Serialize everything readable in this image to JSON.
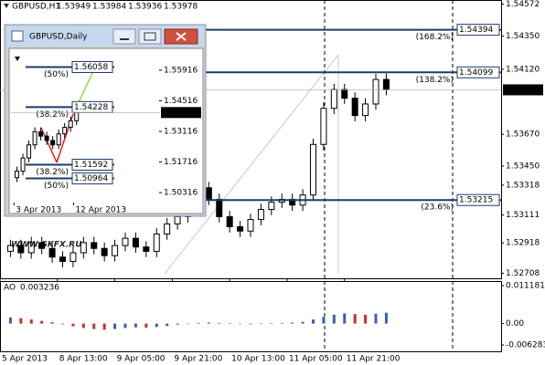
{
  "chart_data": [
    {
      "type": "candlestick",
      "symbol": "GBPUSD,H1",
      "ohlc": [
        1.53949,
        1.53984,
        1.53936,
        1.53978
      ],
      "watermark": "WWW.GKFX.RU",
      "x": [
        1,
        2,
        3,
        4,
        5,
        6,
        7,
        8,
        9,
        10,
        11,
        12,
        13,
        14,
        15,
        16,
        17,
        18,
        19,
        20,
        21,
        22,
        23,
        24,
        25,
        26,
        27,
        28,
        29,
        30,
        31,
        32,
        33,
        34,
        35,
        36,
        37
      ],
      "open": [
        1.5286,
        1.529,
        1.5285,
        1.5292,
        1.5288,
        1.5282,
        1.5279,
        1.5285,
        1.5292,
        1.5288,
        1.5283,
        1.529,
        1.5295,
        1.5289,
        1.5286,
        1.5298,
        1.5305,
        1.531,
        1.5318,
        1.533,
        1.5322,
        1.531,
        1.5303,
        1.53,
        1.5308,
        1.5315,
        1.532,
        1.5322,
        1.5318,
        1.5325,
        1.536,
        1.5385,
        1.5398,
        1.5392,
        1.538,
        1.5388,
        1.5405
      ],
      "high": [
        1.5294,
        1.5294,
        1.5296,
        1.5296,
        1.5292,
        1.5286,
        1.5289,
        1.5296,
        1.5296,
        1.5292,
        1.5294,
        1.5299,
        1.5299,
        1.5293,
        1.5302,
        1.5309,
        1.5314,
        1.5322,
        1.5334,
        1.5334,
        1.5326,
        1.5314,
        1.5307,
        1.5312,
        1.5319,
        1.5324,
        1.5326,
        1.5326,
        1.5329,
        1.5364,
        1.5389,
        1.5402,
        1.5402,
        1.5396,
        1.5392,
        1.5409,
        1.5409
      ],
      "low": [
        1.5282,
        1.5281,
        1.5281,
        1.5284,
        1.5278,
        1.5275,
        1.5275,
        1.5281,
        1.5284,
        1.5279,
        1.5279,
        1.5286,
        1.5285,
        1.5282,
        1.5282,
        1.5294,
        1.5301,
        1.5306,
        1.5314,
        1.5318,
        1.5306,
        1.5299,
        1.5296,
        1.5296,
        1.5304,
        1.5311,
        1.5316,
        1.5314,
        1.5314,
        1.5321,
        1.5356,
        1.5381,
        1.5388,
        1.5376,
        1.5376,
        1.5384,
        1.5394
      ],
      "close": [
        1.529,
        1.5285,
        1.5292,
        1.5288,
        1.5282,
        1.5279,
        1.5285,
        1.5292,
        1.5288,
        1.5283,
        1.529,
        1.5295,
        1.5289,
        1.5286,
        1.5298,
        1.5305,
        1.531,
        1.5318,
        1.533,
        1.5322,
        1.531,
        1.5303,
        1.53,
        1.5308,
        1.5315,
        1.532,
        1.5322,
        1.5318,
        1.5325,
        1.536,
        1.5385,
        1.5398,
        1.5392,
        1.538,
        1.5388,
        1.5405,
        1.5398
      ],
      "xlim": [
        0,
        48
      ],
      "xticks": [
        {
          "value": 0,
          "label": "5 Apr 2013"
        },
        {
          "value": 5.5,
          "label": "8 Apr 13:00"
        },
        {
          "value": 11,
          "label": "9 Apr 05:00"
        },
        {
          "value": 16.5,
          "label": "9 Apr 21:00"
        },
        {
          "value": 22,
          "label": "10 Apr 13:00"
        },
        {
          "value": 27.5,
          "label": "11 Apr 05:00"
        },
        {
          "value": 33,
          "label": "11 Apr 21:00"
        }
      ],
      "ylim": [
        1.52673,
        1.546
      ],
      "yticks": [
        1.54572,
        {
          "value": 1.5435,
          "label": "1.54350"
        },
        {
          "value": 1.5412,
          "label": "1.54120"
        },
        {
          "value": 1.5367,
          "label": "1.53670"
        },
        {
          "value": 1.5345,
          "label": "1.53450"
        },
        1.53318,
        1.53111,
        1.52918,
        1.52708
      ],
      "last_price": 1.53978,
      "levels": [
        {
          "value": 1.54394,
          "label": "(168.2%)"
        },
        {
          "value": 1.54099,
          "label": "(138.2%)"
        },
        {
          "value": 1.53215,
          "label": "(23.6%)"
        }
      ]
    },
    {
      "type": "candlestick",
      "title": "GBPUSD,Daily",
      "x": [
        1,
        2,
        3,
        4,
        5,
        6,
        7,
        8,
        9,
        10,
        11
      ],
      "open": [
        1.51,
        1.513,
        1.519,
        1.525,
        1.531,
        1.529,
        1.527,
        1.525,
        1.53,
        1.533,
        1.536
      ],
      "high": [
        1.515,
        1.521,
        1.527,
        1.533,
        1.533,
        1.531,
        1.529,
        1.532,
        1.535,
        1.538,
        1.5418
      ],
      "low": [
        1.508,
        1.511,
        1.517,
        1.523,
        1.527,
        1.525,
        1.523,
        1.523,
        1.528,
        1.531,
        1.534
      ],
      "close": [
        1.513,
        1.519,
        1.525,
        1.531,
        1.529,
        1.527,
        1.525,
        1.53,
        1.533,
        1.536,
        1.5398
      ],
      "xlim": [
        0,
        25
      ],
      "xticks": [
        {
          "value": 0.5,
          "label": "3 Apr 2013"
        },
        {
          "value": 10.5,
          "label": "12 Apr 2013"
        }
      ],
      "ylim": [
        1.4986,
        1.5683
      ],
      "yticks": [
        1.55916,
        1.54516,
        1.53116,
        1.51716,
        1.50316
      ],
      "last_price": 1.53978,
      "levels": [
        {
          "value": 1.56058,
          "label": "(50%)"
        },
        {
          "value": 1.54228,
          "label": "(38.2%)"
        },
        {
          "value": 1.51592,
          "label": "(38.2%)"
        },
        {
          "value": 1.50964,
          "label": "(50%)"
        }
      ]
    },
    {
      "type": "bar",
      "name": "AO",
      "last": 0.003236,
      "x": [
        1,
        2,
        3,
        4,
        5,
        6,
        7,
        8,
        9,
        10,
        11,
        12,
        13,
        14,
        15,
        16,
        17,
        18,
        19,
        20,
        21,
        22,
        23,
        24,
        25,
        26,
        27,
        28,
        29,
        30,
        31,
        32,
        33,
        34,
        35,
        36,
        37
      ],
      "values": [
        0.0018,
        0.0016,
        0.0012,
        0.0008,
        0.0004,
        -0.0002,
        -0.0008,
        -0.0013,
        -0.0016,
        -0.0018,
        -0.0016,
        -0.0013,
        -0.0011,
        -0.0012,
        -0.001,
        -0.0007,
        -0.0003,
        0.0,
        0.0002,
        0.0003,
        0.0002,
        0.0001,
        0.0,
        -0.0002,
        -0.0001,
        0.0001,
        0.0002,
        0.0003,
        0.0005,
        0.0012,
        0.002,
        0.0026,
        0.003,
        0.0028,
        0.0026,
        0.0029,
        0.0032
      ],
      "up_color": "#3f5fb0",
      "down_color": "#c83030",
      "xlim": [
        0,
        48
      ],
      "ylim": [
        -0.00816,
        0.01252
      ],
      "yticks": [
        0.011181,
        {
          "value": 0,
          "label": "0.00"
        },
        -0.006283
      ]
    }
  ]
}
